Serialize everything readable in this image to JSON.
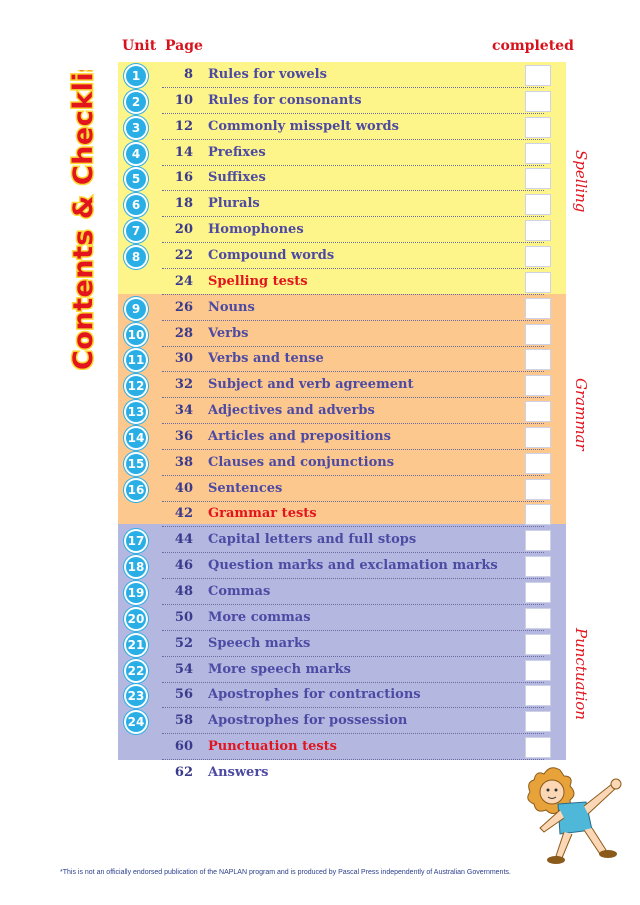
{
  "title": "Contents & Checklist",
  "headers": {
    "unit": "Unit",
    "page": "Page",
    "completed": "completed"
  },
  "sections": {
    "spelling": "Spelling",
    "grammar": "Grammar",
    "punctuation": "Punctuation"
  },
  "rows": [
    {
      "unit": "1",
      "page": "8",
      "title": "Rules for vowels"
    },
    {
      "unit": "2",
      "page": "10",
      "title": "Rules for consonants"
    },
    {
      "unit": "3",
      "page": "12",
      "title": "Commonly misspelt words"
    },
    {
      "unit": "4",
      "page": "14",
      "title": "Prefixes"
    },
    {
      "unit": "5",
      "page": "16",
      "title": "Suffixes"
    },
    {
      "unit": "6",
      "page": "18",
      "title": "Plurals"
    },
    {
      "unit": "7",
      "page": "20",
      "title": "Homophones"
    },
    {
      "unit": "8",
      "page": "22",
      "title": "Compound words"
    },
    {
      "unit": "",
      "page": "24",
      "title": "Spelling tests",
      "test": true
    },
    {
      "unit": "9",
      "page": "26",
      "title": "Nouns"
    },
    {
      "unit": "10",
      "page": "28",
      "title": "Verbs"
    },
    {
      "unit": "11",
      "page": "30",
      "title": "Verbs and tense"
    },
    {
      "unit": "12",
      "page": "32",
      "title": "Subject and verb agreement"
    },
    {
      "unit": "13",
      "page": "34",
      "title": "Adjectives and adverbs"
    },
    {
      "unit": "14",
      "page": "36",
      "title": "Articles and prepositions"
    },
    {
      "unit": "15",
      "page": "38",
      "title": "Clauses and conjunctions"
    },
    {
      "unit": "16",
      "page": "40",
      "title": "Sentences"
    },
    {
      "unit": "",
      "page": "42",
      "title": "Grammar tests",
      "test": true
    },
    {
      "unit": "17",
      "page": "44",
      "title": "Capital letters and full stops"
    },
    {
      "unit": "18",
      "page": "46",
      "title": "Question marks and exclamation marks"
    },
    {
      "unit": "19",
      "page": "48",
      "title": "Commas"
    },
    {
      "unit": "20",
      "page": "50",
      "title": "More commas"
    },
    {
      "unit": "21",
      "page": "52",
      "title": "Speech marks"
    },
    {
      "unit": "22",
      "page": "54",
      "title": "More speech marks"
    },
    {
      "unit": "23",
      "page": "56",
      "title": "Apostrophes for contractions"
    },
    {
      "unit": "24",
      "page": "58",
      "title": "Apostrophes for possession"
    },
    {
      "unit": "",
      "page": "60",
      "title": "Punctuation tests",
      "test": true
    },
    {
      "unit": "",
      "page": "62",
      "title": "Answers",
      "nobox": true
    }
  ],
  "footnote": "*This is not an officially endorsed publication of the NAPLAN program and is produced by Pascal Press independently of Australian Governments.",
  "colors": {
    "accent": "#e2151f",
    "badge": "#29aee5",
    "spelling_band": "#fdf48a",
    "grammar_band": "#fcc88e",
    "punctuation_band": "#b4b8e0"
  }
}
